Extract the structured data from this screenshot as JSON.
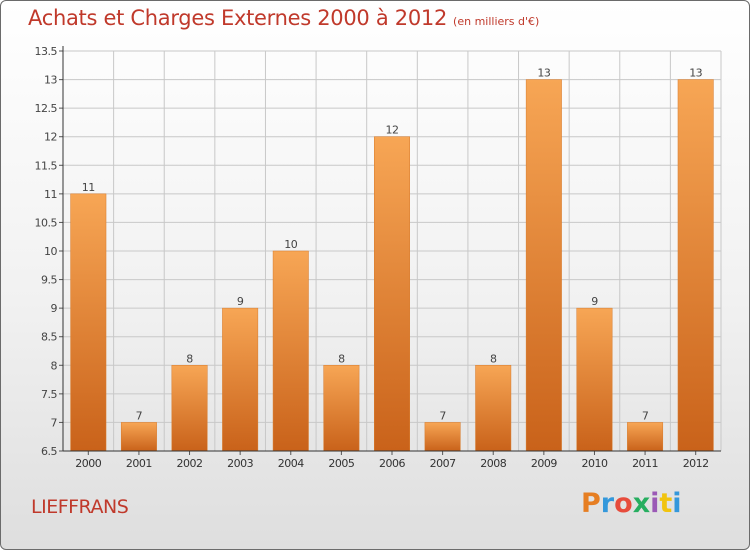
{
  "header": {
    "title": "Achats et Charges Externes 2000 à 2012",
    "unit": "(en milliers d'€)"
  },
  "footer": {
    "place": "LIEFFRANS",
    "logo": "Proxiti",
    "logo_colors": [
      "#e67e22",
      "#3498db",
      "#e74c3c",
      "#27ae60",
      "#9b59b6",
      "#f1c40f",
      "#3498db"
    ]
  },
  "colors": {
    "bar_light": "#f7a655",
    "bar_dark": "#c9621a",
    "title": "#c0392b",
    "grid": "#c8c8c8"
  },
  "chart_data": {
    "type": "bar",
    "title": "Achats et Charges Externes 2000 à 2012",
    "ylabel": "(en milliers d'€)",
    "categories": [
      "2000",
      "2001",
      "2002",
      "2003",
      "2004",
      "2005",
      "2006",
      "2007",
      "2008",
      "2009",
      "2010",
      "2011",
      "2012"
    ],
    "values": [
      11,
      7,
      8,
      9,
      10,
      8,
      12,
      7,
      8,
      13,
      9,
      7,
      13
    ],
    "ylim": [
      6.5,
      13.5
    ],
    "yticks": [
      "6.5",
      "7",
      "7.5",
      "8",
      "8.5",
      "9",
      "9.5",
      "10",
      "10.5",
      "11",
      "11.5",
      "12",
      "12.5",
      "13",
      "13.5"
    ],
    "ytick_values": [
      6.5,
      7,
      7.5,
      8,
      8.5,
      9,
      9.5,
      10,
      10.5,
      11,
      11.5,
      12,
      12.5,
      13,
      13.5
    ],
    "grid": true
  }
}
